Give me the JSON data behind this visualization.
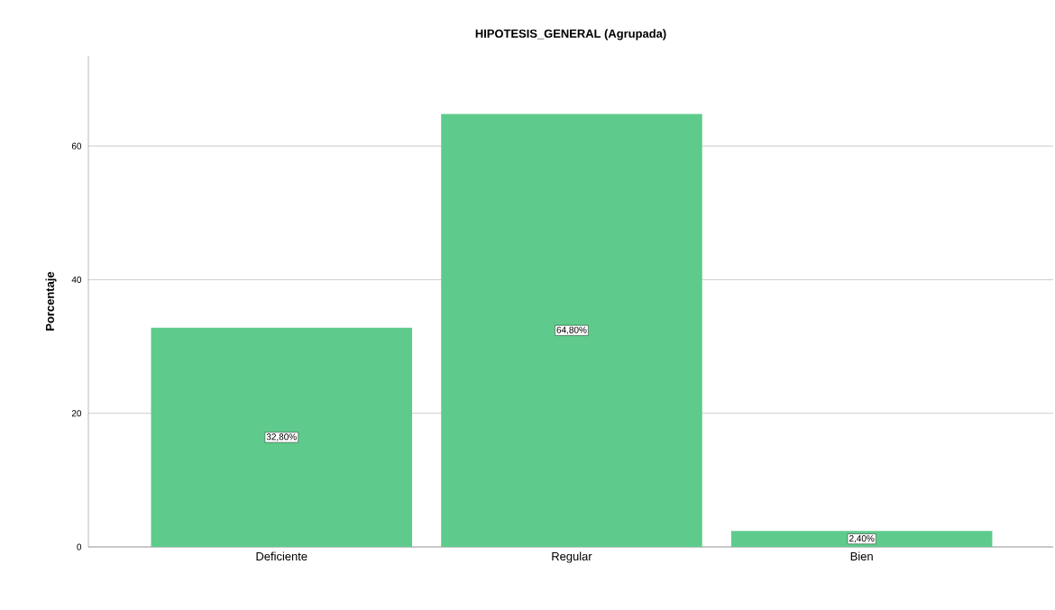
{
  "chart_data": {
    "type": "bar",
    "title": "HIPOTESIS_GENERAL (Agrupada)",
    "ylabel": "Porcentaje",
    "categories": [
      "Deficiente",
      "Regular",
      "Bien"
    ],
    "values": [
      32.8,
      64.8,
      2.4
    ],
    "value_labels": [
      "32,80%",
      "64,80%",
      "2,40%"
    ],
    "color": "#5ecb8c",
    "ylim": [
      0,
      73.5
    ],
    "yticks": [
      0,
      20,
      40,
      60
    ],
    "grid": "y"
  }
}
